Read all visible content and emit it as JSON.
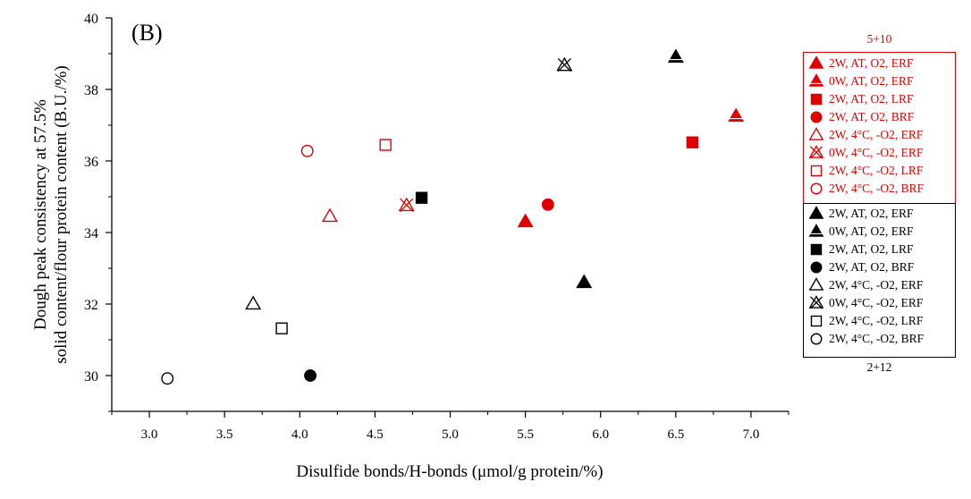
{
  "chart_data": {
    "type": "scatter",
    "panel_label": "(B)",
    "xlabel": "Disulfide bonds/H-bonds (μmol/g protein/%)",
    "ylabel_line1": "Dough peak consistency at 57.5%",
    "ylabel_line2": "solid content/flour protein content (B.U./%)",
    "xlim": [
      2.75,
      7.25
    ],
    "ylim": [
      29,
      40
    ],
    "x_ticks": [
      3.0,
      3.5,
      4.0,
      4.5,
      5.0,
      5.5,
      6.0,
      6.5,
      7.0
    ],
    "x_tick_labels": [
      "3.0",
      "3.5",
      "4.0",
      "4.5",
      "5.0",
      "5.5",
      "6.0",
      "6.5",
      "7.0"
    ],
    "y_ticks": [
      30,
      32,
      34,
      36,
      38,
      40
    ],
    "y_tick_labels": [
      "30",
      "32",
      "34",
      "36",
      "38",
      "40"
    ],
    "legend_groups": [
      {
        "title": "5+10",
        "color": "#e00000"
      },
      {
        "title": "2+12",
        "color": "#000000"
      }
    ],
    "series": [
      {
        "name": "2W, AT, O2, ERF",
        "group": 0,
        "marker": "triangle",
        "filled": true,
        "x": 5.5,
        "y": 34.3
      },
      {
        "name": "0W, AT, O2, ERF",
        "group": 0,
        "marker": "triangle-line",
        "filled": true,
        "x": 6.9,
        "y": 37.25
      },
      {
        "name": "2W, AT, O2, LRF",
        "group": 0,
        "marker": "square",
        "filled": true,
        "x": 6.61,
        "y": 36.52
      },
      {
        "name": "2W, AT, O2, BRF",
        "group": 0,
        "marker": "circle",
        "filled": true,
        "x": 5.65,
        "y": 34.78
      },
      {
        "name": "2W, 4°C, -O2, ERF",
        "group": 0,
        "marker": "triangle",
        "filled": false,
        "x": 4.2,
        "y": 34.45
      },
      {
        "name": "0W, 4°C, -O2, ERF",
        "group": 0,
        "marker": "triangle-x",
        "filled": false,
        "x": 4.71,
        "y": 34.75
      },
      {
        "name": "2W, 4°C, -O2, LRF",
        "group": 0,
        "marker": "square",
        "filled": false,
        "x": 4.57,
        "y": 36.45
      },
      {
        "name": "2W, 4°C, -O2, BRF",
        "group": 0,
        "marker": "circle",
        "filled": false,
        "x": 4.05,
        "y": 36.28
      },
      {
        "name": "2W, AT, O2, ERF",
        "group": 1,
        "marker": "triangle",
        "filled": true,
        "x": 5.89,
        "y": 32.6
      },
      {
        "name": "0W, AT, O2, ERF",
        "group": 1,
        "marker": "triangle-line",
        "filled": true,
        "x": 6.5,
        "y": 38.9
      },
      {
        "name": "2W, AT, O2, LRF",
        "group": 1,
        "marker": "square",
        "filled": true,
        "x": 4.81,
        "y": 34.97
      },
      {
        "name": "2W, AT, O2, BRF",
        "group": 1,
        "marker": "circle",
        "filled": true,
        "x": 4.07,
        "y": 30.0
      },
      {
        "name": "2W, 4°C, -O2, ERF",
        "group": 1,
        "marker": "triangle",
        "filled": false,
        "x": 3.69,
        "y": 32.0
      },
      {
        "name": "0W, 4°C, -O2, ERF",
        "group": 1,
        "marker": "triangle-x",
        "filled": false,
        "x": 5.76,
        "y": 38.67
      },
      {
        "name": "2W, 4°C, -O2, LRF",
        "group": 1,
        "marker": "square",
        "filled": false,
        "x": 3.88,
        "y": 31.32
      },
      {
        "name": "2W, 4°C, -O2, BRF",
        "group": 1,
        "marker": "circle",
        "filled": false,
        "x": 3.12,
        "y": 29.92
      }
    ]
  }
}
